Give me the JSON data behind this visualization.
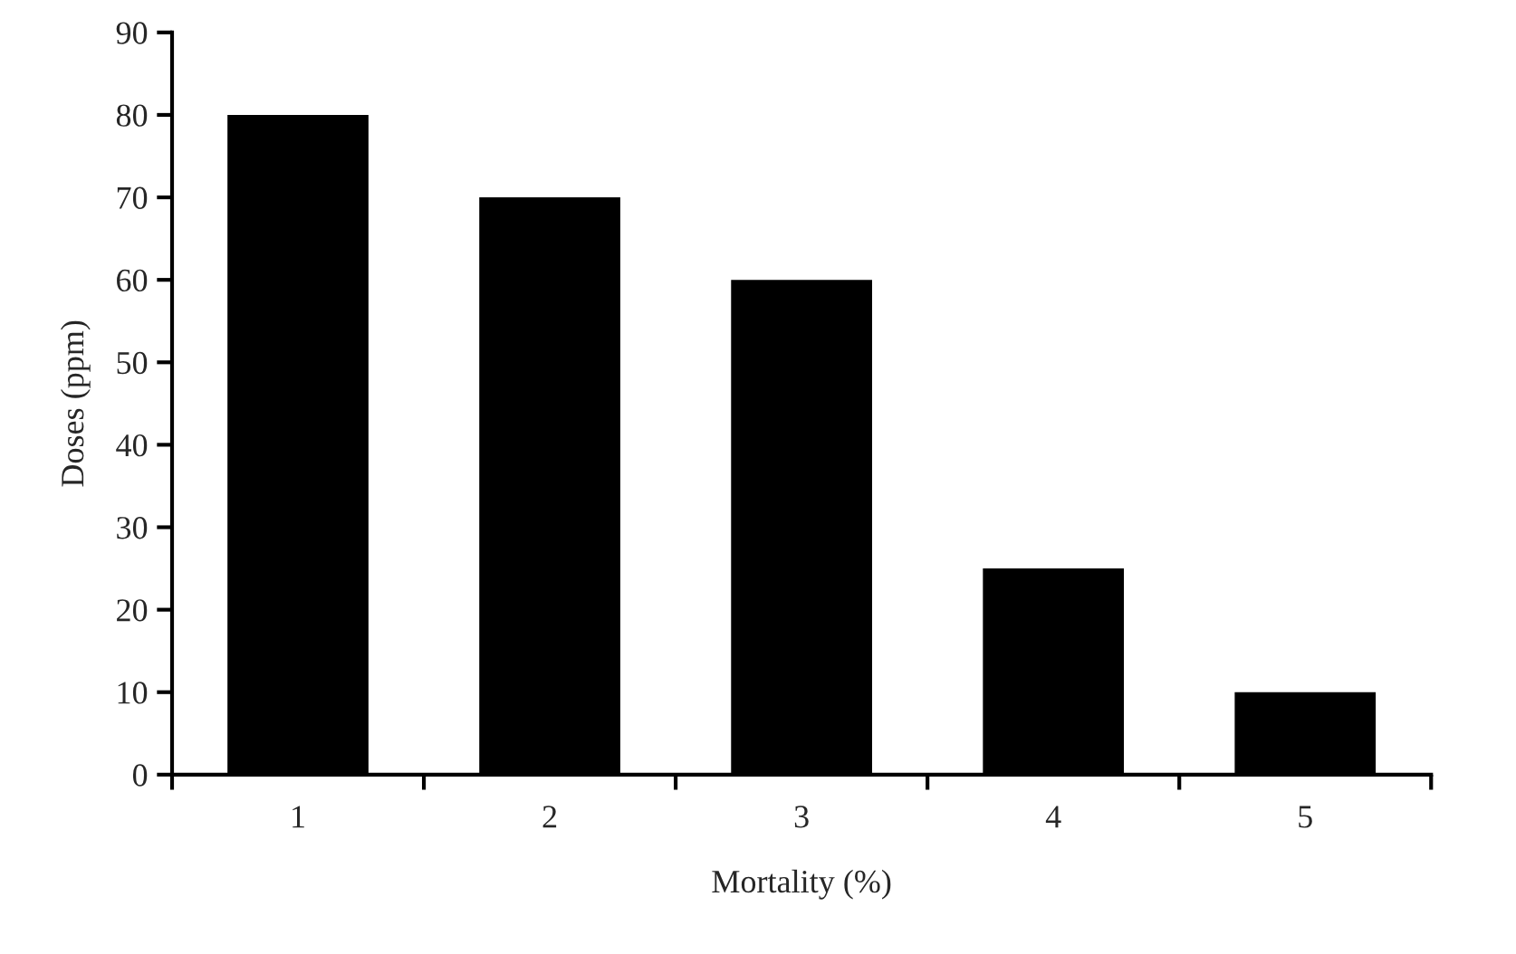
{
  "chart_data": {
    "type": "bar",
    "xlabel": "Mortality (%)",
    "ylabel": "Doses (ppm)",
    "categories": [
      "1",
      "2",
      "3",
      "4",
      "5"
    ],
    "values": [
      80,
      70,
      60,
      25,
      10
    ],
    "color": "#000000",
    "ylim": [
      0,
      90
    ],
    "yticks": [
      0,
      10,
      20,
      30,
      40,
      50,
      60,
      70,
      80,
      90
    ],
    "grid": false,
    "legend": false
  }
}
